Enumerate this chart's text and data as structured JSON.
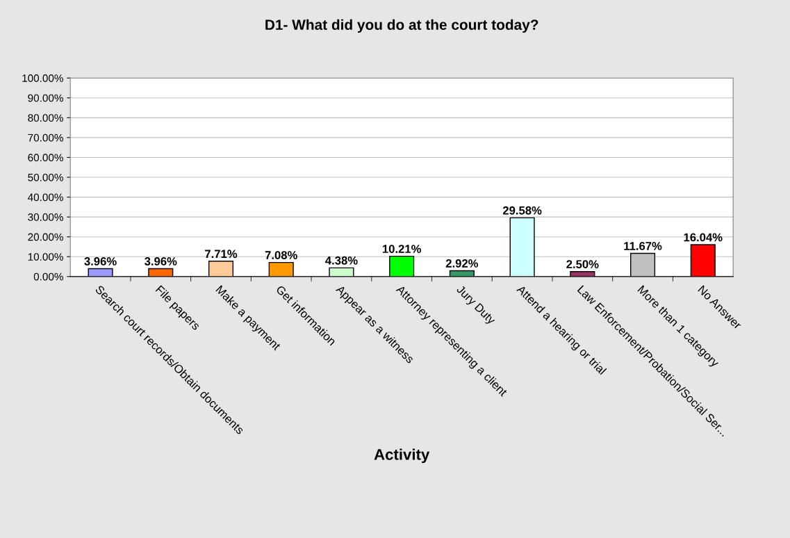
{
  "chart_data": {
    "type": "bar",
    "title": "D1- What did you do at the court today?",
    "xlabel": "Activity",
    "categories": [
      "Search court records/Obtain documents",
      "File papers",
      "Make a payment",
      "Get information",
      "Appear as a witness",
      "Attorney representing a client",
      "Jury Duty",
      "Attend a hearing or trial",
      "Law Enforcement/Probation/Social Ser...",
      "More than 1 category",
      "No Answer"
    ],
    "values": [
      3.96,
      3.96,
      7.71,
      7.08,
      4.38,
      10.21,
      2.92,
      29.58,
      2.5,
      11.67,
      16.04
    ],
    "value_labels": [
      "3.96%",
      "3.96%",
      "7.71%",
      "7.08%",
      "4.38%",
      "10.21%",
      "2.92%",
      "29.58%",
      "2.50%",
      "11.67%",
      "16.04%"
    ],
    "colors": [
      "#9999ff",
      "#ff6600",
      "#ffcc99",
      "#ff9900",
      "#ccffcc",
      "#00ff00",
      "#339966",
      "#ccffff",
      "#993366",
      "#c0c0c0",
      "#ff0000"
    ],
    "ylim": [
      0,
      100
    ],
    "yticks": [
      {
        "value": 0,
        "label": "0.00%"
      },
      {
        "value": 10,
        "label": "10.00%"
      },
      {
        "value": 20,
        "label": "20.00%"
      },
      {
        "value": 30,
        "label": "30.00%"
      },
      {
        "value": 40,
        "label": "40.00%"
      },
      {
        "value": 50,
        "label": "50.00%"
      },
      {
        "value": 60,
        "label": "60.00%"
      },
      {
        "value": 70,
        "label": "70.00%"
      },
      {
        "value": 80,
        "label": "80.00%"
      },
      {
        "value": 90,
        "label": "90.00%"
      },
      {
        "value": 100,
        "label": "100.00%"
      }
    ],
    "grid": "y",
    "legend": false
  }
}
